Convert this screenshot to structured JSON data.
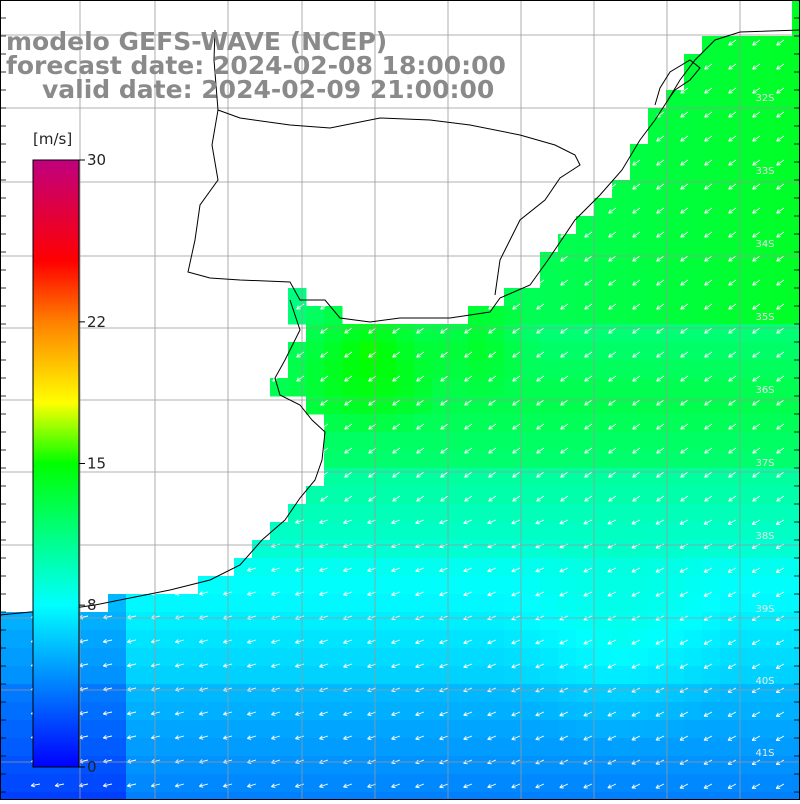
{
  "title": {
    "line1": "modelo GEFS-WAVE (NCEP)",
    "line2": "forecast date: 2024-02-08 18:00:00",
    "line3": "valid date: 2024-02-09 21:00:00"
  },
  "colorbar": {
    "unit": "[m/s]",
    "ticks": [
      "30",
      "22",
      "15",
      "8",
      "0"
    ],
    "range": [
      0,
      30
    ],
    "stops": [
      {
        "value": 0,
        "color": "#0000ff"
      },
      {
        "value": 8,
        "color": "#00ffff"
      },
      {
        "value": 15,
        "color": "#00ff00"
      },
      {
        "value": 18,
        "color": "#ffff00"
      },
      {
        "value": 22,
        "color": "#ff8000"
      },
      {
        "value": 25,
        "color": "#ff0000"
      },
      {
        "value": 30,
        "color": "#c0007f"
      }
    ]
  },
  "latitude_labels": [
    "32S",
    "33S",
    "34S",
    "35S",
    "36S",
    "37S",
    "38S",
    "39S",
    "40S",
    "41S"
  ],
  "colors": {
    "land": "#ffffff",
    "grid": "#999999",
    "coast": "#000000",
    "arrows": "#ffffff"
  }
}
